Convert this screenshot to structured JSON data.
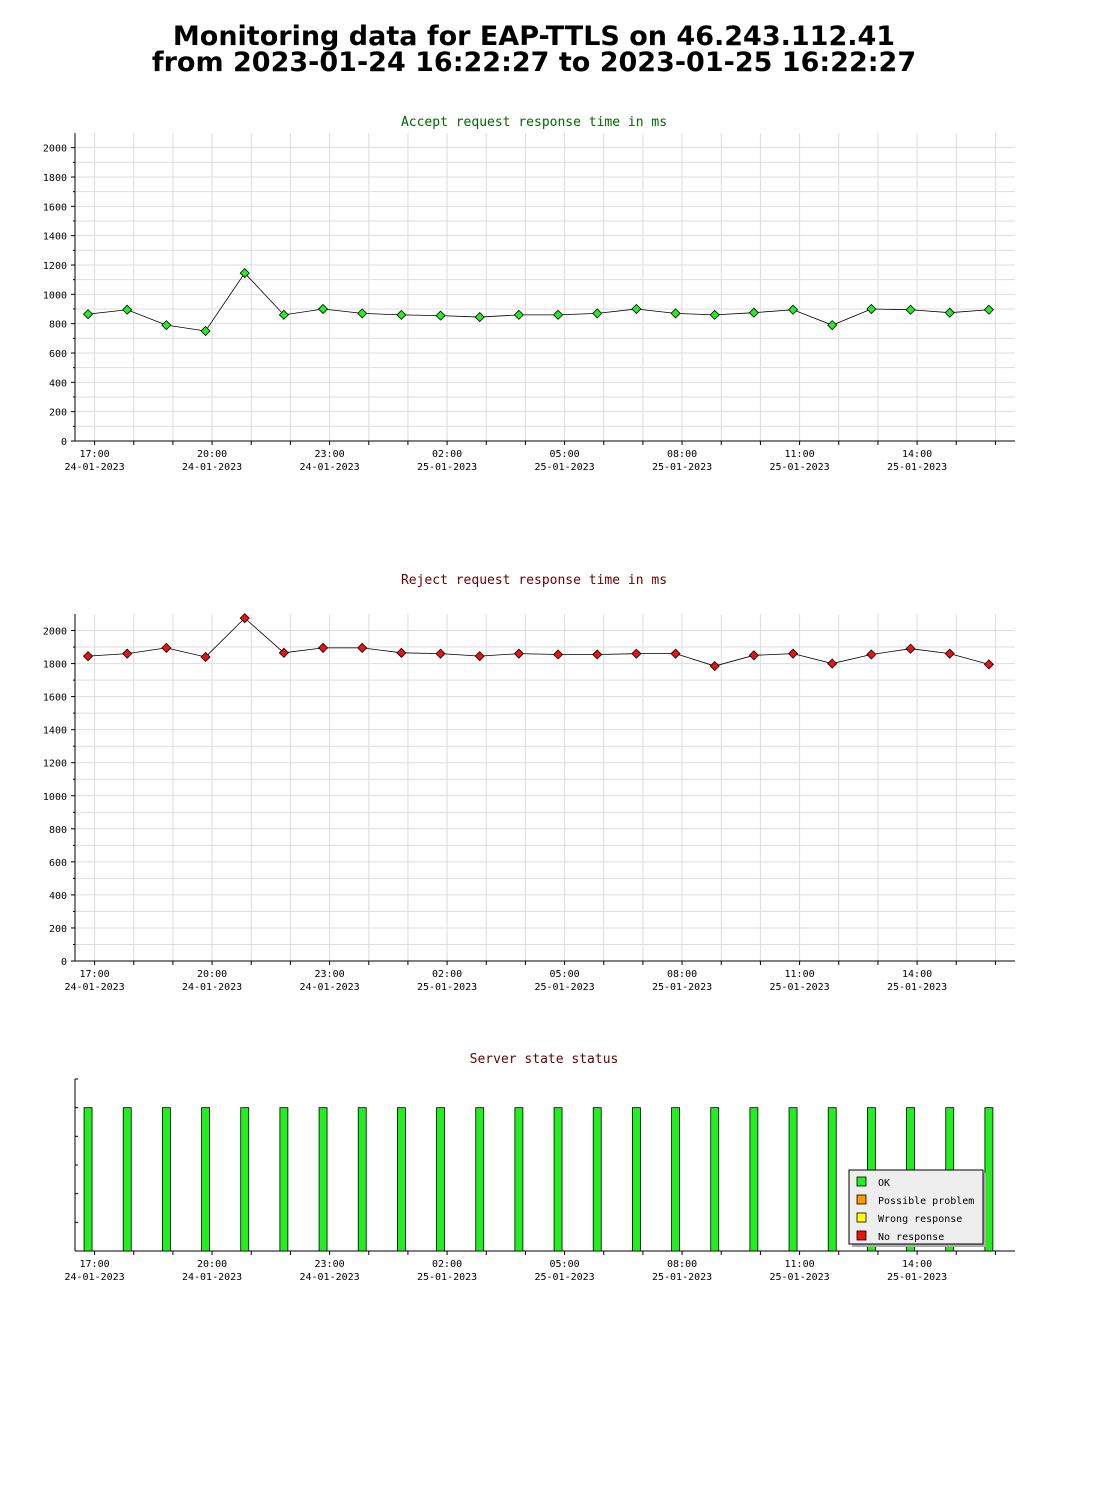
{
  "page": {
    "title_line1": "Monitoring data for EAP-TTLS on 46.243.112.41",
    "title_line2": "from 2023-01-24 16:22:27 to 2023-01-25 16:22:27"
  },
  "colors": {
    "accept_marker": "#22ee22",
    "reject_marker": "#ee1111",
    "accept_title": "#006600",
    "reject_title": "#660000",
    "status_title": "#660000",
    "ok": "#22ee22",
    "possible_problem": "#ff9900",
    "wrong_response": "#ffff00",
    "no_response": "#ee1111",
    "grid": "#dddddd"
  },
  "x_tick_labels": [
    {
      "time": "17:00",
      "date": "24-01-2023"
    },
    {
      "time": "20:00",
      "date": "24-01-2023"
    },
    {
      "time": "23:00",
      "date": "24-01-2023"
    },
    {
      "time": "02:00",
      "date": "25-01-2023"
    },
    {
      "time": "05:00",
      "date": "25-01-2023"
    },
    {
      "time": "08:00",
      "date": "25-01-2023"
    },
    {
      "time": "11:00",
      "date": "25-01-2023"
    },
    {
      "time": "14:00",
      "date": "25-01-2023"
    }
  ],
  "chart_data": [
    {
      "type": "line",
      "title": "Accept request response time in ms",
      "xlabel": "",
      "ylabel": "",
      "ylim": [
        0,
        2100
      ],
      "y_ticks": [
        0,
        200,
        400,
        600,
        800,
        1000,
        1200,
        1400,
        1600,
        1800,
        2000
      ],
      "x": [
        "16:50",
        "17:50",
        "18:50",
        "19:50",
        "20:50",
        "21:50",
        "22:50",
        "23:50",
        "00:50",
        "01:50",
        "02:50",
        "03:50",
        "04:50",
        "05:50",
        "06:50",
        "07:50",
        "08:50",
        "09:50",
        "10:50",
        "11:50",
        "12:50",
        "13:50",
        "14:50",
        "15:50"
      ],
      "values": [
        865,
        895,
        790,
        750,
        1145,
        860,
        900,
        870,
        860,
        855,
        845,
        860,
        860,
        870,
        900,
        870,
        860,
        875,
        895,
        790,
        900,
        895,
        875,
        895
      ],
      "grid": true,
      "marker_color": "#22ee22"
    },
    {
      "type": "line",
      "title": "Reject request response time in ms",
      "xlabel": "",
      "ylabel": "",
      "ylim": [
        0,
        2100
      ],
      "y_ticks": [
        0,
        200,
        400,
        600,
        800,
        1000,
        1200,
        1400,
        1600,
        1800,
        2000
      ],
      "x": [
        "16:50",
        "17:50",
        "18:50",
        "19:50",
        "20:50",
        "21:50",
        "22:50",
        "23:50",
        "00:50",
        "01:50",
        "02:50",
        "03:50",
        "04:50",
        "05:50",
        "06:50",
        "07:50",
        "08:50",
        "09:50",
        "10:50",
        "11:50",
        "12:50",
        "13:50",
        "14:50",
        "15:50"
      ],
      "values": [
        1845,
        1860,
        1895,
        1840,
        2075,
        1865,
        1895,
        1895,
        1865,
        1860,
        1845,
        1860,
        1855,
        1855,
        1860,
        1860,
        1785,
        1850,
        1860,
        1800,
        1855,
        1890,
        1860,
        1795
      ],
      "grid": true,
      "marker_color": "#ee1111"
    },
    {
      "type": "bar",
      "title": "Server state status",
      "xlabel": "",
      "ylabel": "",
      "x": [
        "16:50",
        "17:50",
        "18:50",
        "19:50",
        "20:50",
        "21:50",
        "22:50",
        "23:50",
        "00:50",
        "01:50",
        "02:50",
        "03:50",
        "04:50",
        "05:50",
        "06:50",
        "07:50",
        "08:50",
        "09:50",
        "10:50",
        "11:50",
        "12:50",
        "13:50",
        "14:50",
        "15:50"
      ],
      "states": [
        "OK",
        "OK",
        "OK",
        "OK",
        "OK",
        "OK",
        "OK",
        "OK",
        "OK",
        "OK",
        "OK",
        "OK",
        "OK",
        "OK",
        "OK",
        "OK",
        "OK",
        "OK",
        "OK",
        "OK",
        "OK",
        "OK",
        "OK",
        "OK"
      ],
      "legend": {
        "placement": "bottom-right",
        "items": [
          {
            "label": "OK",
            "color": "#22ee22"
          },
          {
            "label": "Possible problem",
            "color": "#ff9900"
          },
          {
            "label": "Wrong response",
            "color": "#ffff00"
          },
          {
            "label": "No response",
            "color": "#ee1111"
          }
        ]
      }
    }
  ]
}
